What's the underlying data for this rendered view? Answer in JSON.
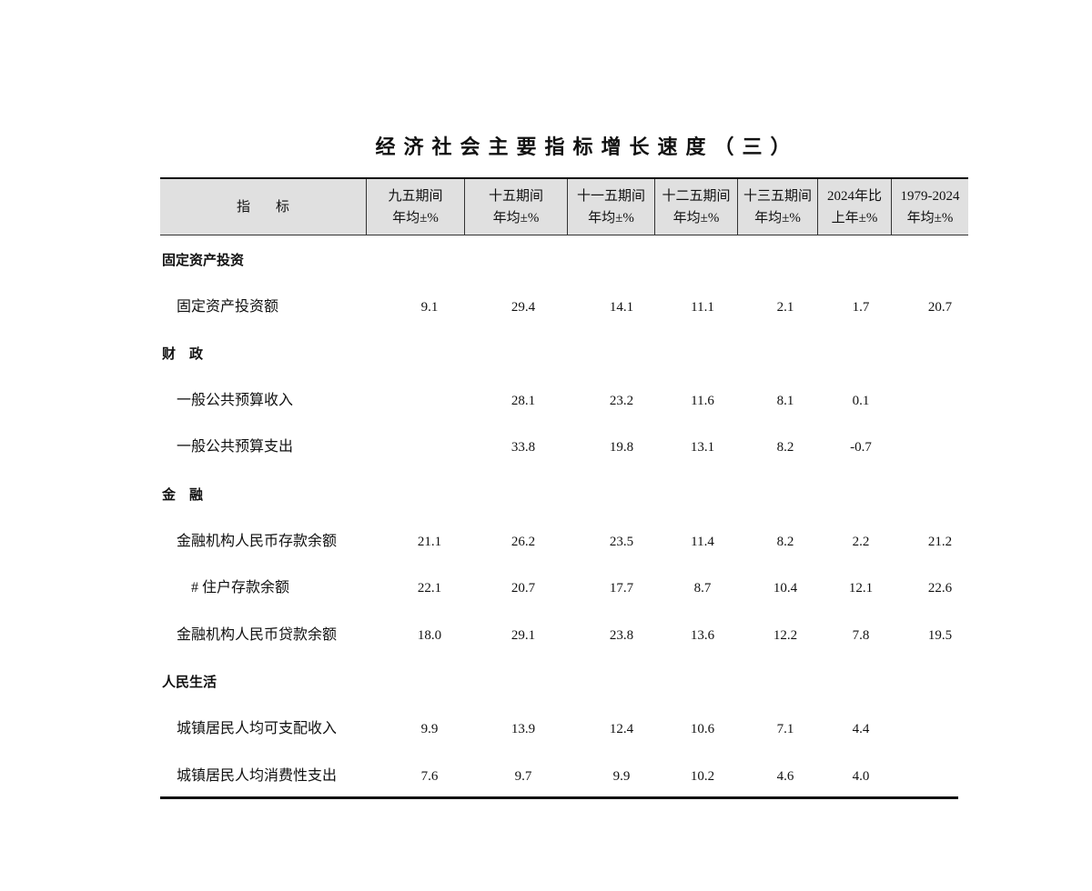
{
  "title": "经济社会主要指标增长速度（三）",
  "header": {
    "indicator": "指标",
    "columns": [
      {
        "line1": "九五期间",
        "line2": "年均±%"
      },
      {
        "line1": "十五期间",
        "line2": "年均±%"
      },
      {
        "line1": "十一五期间",
        "line2": "年均±%"
      },
      {
        "line1": "十二五期间",
        "line2": "年均±%"
      },
      {
        "line1": "十三五期间",
        "line2": "年均±%"
      },
      {
        "line1": "2024年比",
        "line2": "上年±%"
      },
      {
        "line1": "1979-2024",
        "line2": "年均±%"
      }
    ]
  },
  "rows": [
    {
      "type": "category",
      "label": "固定资产投资",
      "values": []
    },
    {
      "type": "item",
      "label": "固定资产投资额",
      "values": [
        "9.1",
        "29.4",
        "14.1",
        "11.1",
        "2.1",
        "1.7",
        "20.7"
      ]
    },
    {
      "type": "category",
      "label": "财　政",
      "values": []
    },
    {
      "type": "item",
      "label": "一般公共预算收入",
      "values": [
        "",
        "28.1",
        "23.2",
        "11.6",
        "8.1",
        "0.1",
        ""
      ]
    },
    {
      "type": "item",
      "label": "一般公共预算支出",
      "values": [
        "",
        "33.8",
        "19.8",
        "13.1",
        "8.2",
        "-0.7",
        ""
      ]
    },
    {
      "type": "category",
      "label": "金　融",
      "values": []
    },
    {
      "type": "item",
      "label": "金融机构人民币存款余额",
      "values": [
        "21.1",
        "26.2",
        "23.5",
        "11.4",
        "8.2",
        "2.2",
        "21.2"
      ]
    },
    {
      "type": "sub",
      "label": "# 住户存款余额",
      "values": [
        "22.1",
        "20.7",
        "17.7",
        "8.7",
        "10.4",
        "12.1",
        "22.6"
      ]
    },
    {
      "type": "item",
      "label": "金融机构人民币贷款余额",
      "values": [
        "18.0",
        "29.1",
        "23.8",
        "13.6",
        "12.2",
        "7.8",
        "19.5"
      ]
    },
    {
      "type": "category",
      "label": "人民生活",
      "values": []
    },
    {
      "type": "item",
      "label": "城镇居民人均可支配收入",
      "values": [
        "9.9",
        "13.9",
        "12.4",
        "10.6",
        "7.1",
        "4.4",
        ""
      ]
    },
    {
      "type": "item",
      "label": "城镇居民人均消费性支出",
      "values": [
        "7.6",
        "9.7",
        "9.9",
        "10.2",
        "4.6",
        "4.0",
        ""
      ]
    }
  ]
}
